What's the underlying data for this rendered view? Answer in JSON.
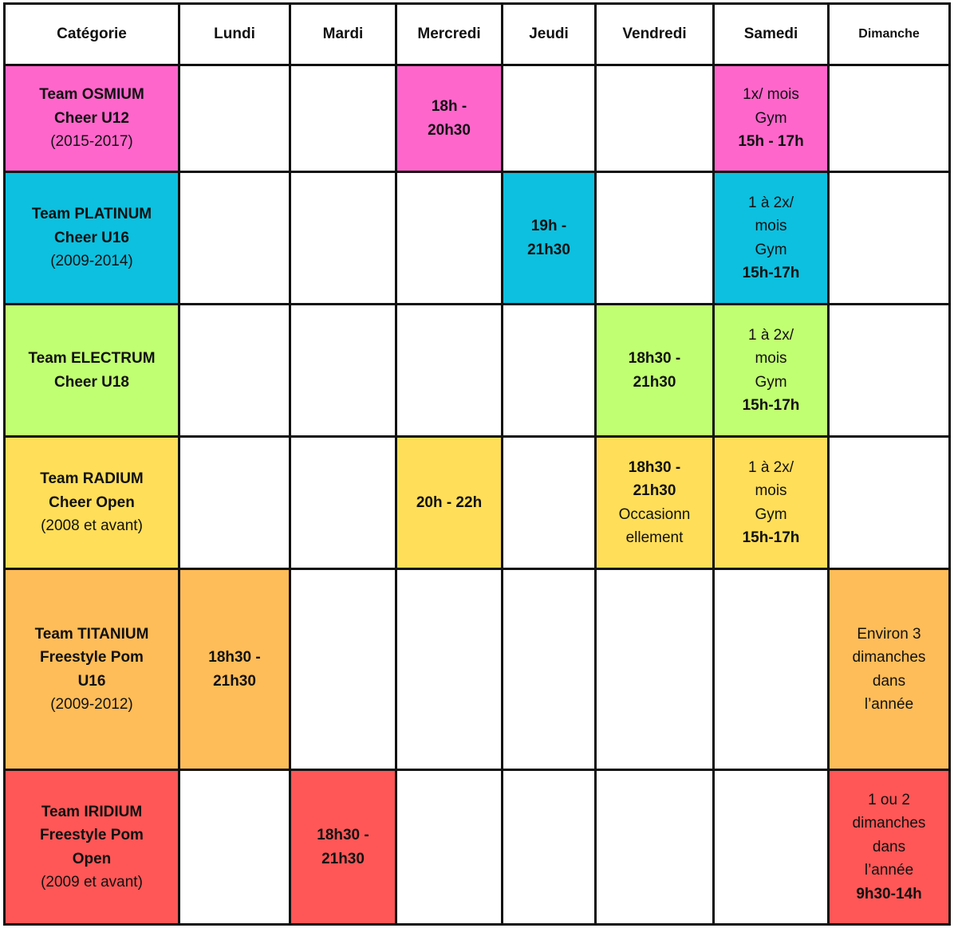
{
  "headers": [
    "Catégorie",
    "Lundi",
    "Mardi",
    "Mercredi",
    "Jeudi",
    "Vendredi",
    "Samedi",
    "Dimanche"
  ],
  "colors": {
    "osmium": "#ff66cc",
    "platinum": "#0dc0df",
    "electrum": "#c1ff72",
    "radium": "#ffde59",
    "titanium": "#ffbd59",
    "iridium": "#ff5757",
    "empty": "#ffffff"
  },
  "rows": [
    {
      "team": "osmium",
      "cells": [
        [
          [
            "Team OSMIUM",
            true
          ],
          [
            "Cheer U12",
            true
          ],
          [
            "(2015-2017)",
            false
          ]
        ],
        [],
        [],
        [
          [
            "18h -",
            true
          ],
          [
            "20h30",
            true
          ]
        ],
        [],
        [],
        [
          [
            "1x/ mois",
            false
          ],
          [
            "Gym",
            false
          ],
          [
            "15h - 17h",
            true
          ]
        ],
        []
      ]
    },
    {
      "team": "platinum",
      "cells": [
        [
          [
            "Team PLATINUM",
            true
          ],
          [
            "Cheer U16",
            true
          ],
          [
            "(2009-2014)",
            false
          ]
        ],
        [],
        [],
        [],
        [
          [
            "19h -",
            true
          ],
          [
            "21h30",
            true
          ]
        ],
        [],
        [
          [
            "1 à 2x/",
            false
          ],
          [
            "mois",
            false
          ],
          [
            "Gym",
            false
          ],
          [
            "15h-17h",
            true
          ]
        ],
        []
      ]
    },
    {
      "team": "electrum",
      "cells": [
        [
          [
            "Team ELECTRUM",
            true
          ],
          [
            "Cheer U18",
            true
          ]
        ],
        [],
        [],
        [],
        [],
        [
          [
            "18h30 -",
            true
          ],
          [
            "21h30",
            true
          ]
        ],
        [
          [
            "1 à 2x/",
            false
          ],
          [
            "mois",
            false
          ],
          [
            "Gym",
            false
          ],
          [
            "15h-17h",
            true
          ]
        ],
        []
      ]
    },
    {
      "team": "radium",
      "cells": [
        [
          [
            "Team RADIUM",
            true
          ],
          [
            "Cheer Open",
            true
          ],
          [
            "(2008 et avant)",
            false
          ]
        ],
        [],
        [],
        [
          [
            "20h - 22h",
            true
          ]
        ],
        [],
        [
          [
            "18h30 -",
            true
          ],
          [
            "21h30",
            true
          ],
          [
            "Occasionn",
            false
          ],
          [
            "ellement",
            false
          ]
        ],
        [
          [
            "1 à 2x/",
            false
          ],
          [
            "mois",
            false
          ],
          [
            "Gym",
            false
          ],
          [
            "15h-17h",
            true
          ]
        ],
        []
      ]
    },
    {
      "team": "titanium",
      "cells": [
        [
          [
            "Team TITANIUM",
            true
          ],
          [
            "Freestyle Pom",
            true
          ],
          [
            "U16",
            true
          ],
          [
            "(2009-2012)",
            false
          ]
        ],
        [
          [
            "18h30 -",
            true
          ],
          [
            "21h30",
            true
          ]
        ],
        [],
        [],
        [],
        [],
        [],
        [
          [
            "Environ 3",
            false
          ],
          [
            "dimanches",
            false
          ],
          [
            "dans",
            false
          ],
          [
            "l’année",
            false
          ]
        ]
      ]
    },
    {
      "team": "iridium",
      "cells": [
        [
          [
            "Team IRIDIUM",
            true
          ],
          [
            "Freestyle Pom",
            true
          ],
          [
            "Open",
            true
          ],
          [
            "(2009 et avant)",
            false
          ]
        ],
        [],
        [
          [
            "18h30 -",
            true
          ],
          [
            "21h30",
            true
          ]
        ],
        [],
        [],
        [],
        [],
        [
          [
            "1 ou 2",
            false
          ],
          [
            "dimanches",
            false
          ],
          [
            "dans",
            false
          ],
          [
            "l’année",
            false
          ],
          [
            "9h30-14h",
            true
          ]
        ]
      ]
    }
  ]
}
